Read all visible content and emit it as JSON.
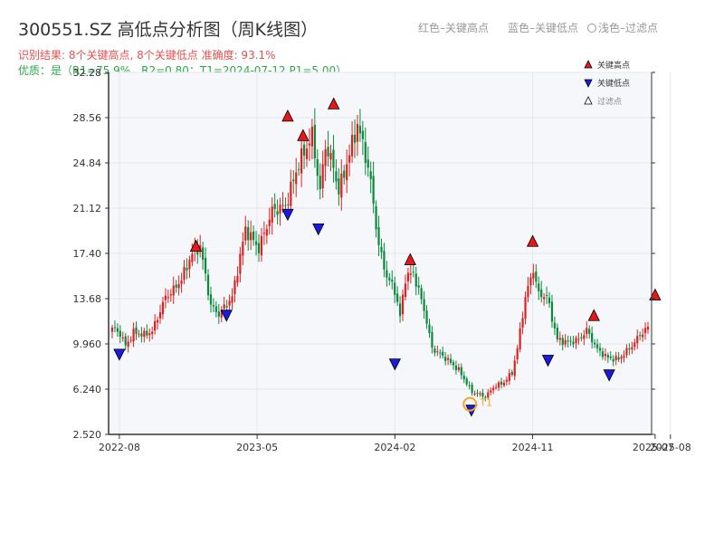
{
  "title": "300551.SZ 高低点分析图（周K线图）",
  "subtitle_result": "识别结果: 8个关键高点, 8个关键低点  准确度: 93.1%",
  "subtitle_quality": "优质：是（R1=75.9%，R2=0.80；T1=2024-07-12 P1=5.00）",
  "top_legend": {
    "red": "红色–关键高点",
    "blue": "蓝色–关键低点",
    "filtered": "浅色–过滤点"
  },
  "colors": {
    "up": "#e02020",
    "down": "#0a8a3a",
    "high_marker": "#e81818",
    "low_marker": "#1a1ae0",
    "t1_ring": "#f5a623",
    "plot_bg": "#f5f7fa",
    "grid": "#e4e8ee"
  },
  "chart_data": {
    "type": "candlestick",
    "y_ticks": [
      "2.520",
      "6.240",
      "9.960",
      "13.68",
      "17.40",
      "21.12",
      "24.84",
      "28.56",
      "32.28"
    ],
    "ylim": [
      2.52,
      32.28
    ],
    "x_ticks": [
      "2022-08",
      "2023-05",
      "2024-02",
      "2024-11",
      "2025-08"
    ],
    "x_end_tick": "2025-07",
    "t1_label": "T1",
    "legend": [
      {
        "name": "关键高点",
        "marker": "triangle-up",
        "color": "#e81818"
      },
      {
        "name": "关键低点",
        "marker": "triangle-down",
        "color": "#1a1ae0"
      },
      {
        "name": "过滤点",
        "marker": "triangle-up-outline",
        "color": "#ffffff"
      }
    ],
    "price_path": [
      [
        0,
        11.3
      ],
      [
        3,
        10.8
      ],
      [
        5,
        9.8
      ],
      [
        8,
        10.9
      ],
      [
        12,
        10.7
      ],
      [
        15,
        11.0
      ],
      [
        20,
        13.8
      ],
      [
        23,
        14.4
      ],
      [
        26,
        15.3
      ],
      [
        30,
        17.4
      ],
      [
        33,
        18.0
      ],
      [
        37,
        13.1
      ],
      [
        40,
        12.4
      ],
      [
        45,
        13.8
      ],
      [
        50,
        19.4
      ],
      [
        55,
        17.8
      ],
      [
        60,
        20.9
      ],
      [
        65,
        21.3
      ],
      [
        70,
        24.8
      ],
      [
        75,
        27.1
      ],
      [
        78,
        22.5
      ],
      [
        80,
        26.3
      ],
      [
        83,
        24.5
      ],
      [
        85,
        22.5
      ],
      [
        88,
        24.8
      ],
      [
        92,
        28.0
      ],
      [
        95,
        25.5
      ],
      [
        97,
        23.2
      ],
      [
        100,
        18.0
      ],
      [
        103,
        15.5
      ],
      [
        106,
        14.4
      ],
      [
        108,
        12.2
      ],
      [
        110,
        15.4
      ],
      [
        113,
        15.8
      ],
      [
        117,
        12.8
      ],
      [
        120,
        9.6
      ],
      [
        125,
        8.8
      ],
      [
        130,
        7.8
      ],
      [
        135,
        6.0
      ],
      [
        138,
        5.8
      ],
      [
        140,
        5.6
      ],
      [
        143,
        6.4
      ],
      [
        147,
        6.8
      ],
      [
        150,
        7.6
      ],
      [
        152,
        9.6
      ],
      [
        155,
        13.8
      ],
      [
        158,
        16.1
      ],
      [
        160,
        14.0
      ],
      [
        163,
        13.9
      ],
      [
        167,
        10.3
      ],
      [
        171,
        10.1
      ],
      [
        175,
        10.3
      ],
      [
        178,
        11.1
      ],
      [
        182,
        9.5
      ],
      [
        186,
        8.8
      ],
      [
        190,
        8.7
      ],
      [
        195,
        9.8
      ],
      [
        198,
        10.7
      ],
      [
        201,
        11.3
      ]
    ],
    "key_highs": [
      {
        "date": "2023-01",
        "value": 17.5
      },
      {
        "date": "2023-07",
        "value": 28.2
      },
      {
        "date": "2023-08",
        "value": 26.6
      },
      {
        "date": "2023-10",
        "value": 29.2
      },
      {
        "date": "2024-03",
        "value": 16.4
      },
      {
        "date": "2024-11",
        "value": 17.9
      },
      {
        "date": "2025-03",
        "value": 11.8
      },
      {
        "date": "2025-07",
        "value": 13.5
      }
    ],
    "key_lows": [
      {
        "date": "2022-08",
        "value": 9.6
      },
      {
        "date": "2023-03",
        "value": 12.8
      },
      {
        "date": "2023-07",
        "value": 21.1
      },
      {
        "date": "2023-09",
        "value": 19.9
      },
      {
        "date": "2024-02",
        "value": 8.8
      },
      {
        "date": "2024-07",
        "value": 5.0
      },
      {
        "date": "2024-12",
        "value": 9.1
      },
      {
        "date": "2025-04",
        "value": 7.9
      }
    ],
    "t1": {
      "date": "2024-07-12",
      "value": 5.0
    }
  }
}
